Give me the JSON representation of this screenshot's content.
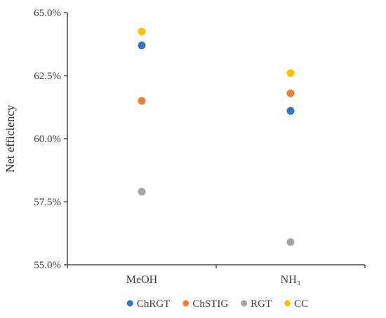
{
  "chart_data": {
    "type": "scatter",
    "title": "",
    "xlabel": "",
    "ylabel": "Net efficiency",
    "categories": [
      "MeOH",
      "NH₃"
    ],
    "ylim": [
      55.0,
      65.0
    ],
    "y_ticks": [
      "55.0%",
      "57.5%",
      "60.0%",
      "62.5%",
      "65.0%"
    ],
    "y_tick_values": [
      55.0,
      57.5,
      60.0,
      62.5,
      65.0
    ],
    "grid": false,
    "legend_position": "bottom",
    "series": [
      {
        "name": "ChRGT",
        "color": "#2E75C6",
        "values": [
          63.7,
          61.1
        ]
      },
      {
        "name": "ChSTIG",
        "color": "#F07F31",
        "values": [
          61.5,
          61.8
        ]
      },
      {
        "name": "RGT",
        "color": "#A6A6A6",
        "values": [
          57.9,
          55.9
        ]
      },
      {
        "name": "CC",
        "color": "#FFC000",
        "values": [
          64.25,
          62.6
        ]
      }
    ]
  }
}
